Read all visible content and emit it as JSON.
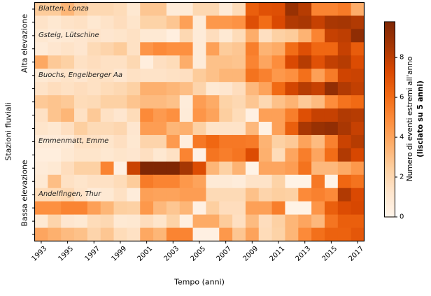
{
  "chart_data": {
    "type": "heatmap",
    "xlabel": "Tempo (anni)",
    "ylabel": "Stazioni fluviali",
    "y_group_labels": [
      {
        "label": "Alta elevazione"
      },
      {
        "label": "Bassa elevazione"
      }
    ],
    "x": [
      1993,
      1994,
      1995,
      1996,
      1997,
      1998,
      1999,
      2000,
      2001,
      2002,
      2003,
      2004,
      2005,
      2006,
      2007,
      2008,
      2009,
      2010,
      2011,
      2012,
      2013,
      2014,
      2015,
      2016,
      2017
    ],
    "x_tick_labels": [
      "1993",
      "1995",
      "1997",
      "1999",
      "2001",
      "2003",
      "2005",
      "2007",
      "2009",
      "2011",
      "2013",
      "2015",
      "2017"
    ],
    "x_tick_cols": [
      0,
      2,
      4,
      6,
      8,
      10,
      12,
      14,
      16,
      18,
      20,
      22,
      24
    ],
    "station_annotations": [
      {
        "label": "Blatten, Lonza",
        "row": 0
      },
      {
        "label": "Gsteig, Lütschine",
        "row": 2
      },
      {
        "label": "Buochs, Engelberger Aa",
        "row": 5
      },
      {
        "label": "Emmenmatt, Emme",
        "row": 10
      },
      {
        "label": "Andelfingen, Thur",
        "row": 14
      }
    ],
    "rows": 18,
    "cols": 25,
    "vmin": 0,
    "vmax": 9.8,
    "grid": false,
    "colormap": {
      "name": "Oranges",
      "anchors": [
        "#fff5eb",
        "#fee6ce",
        "#fdd0a2",
        "#fdae6b",
        "#fd8d3c",
        "#f16913",
        "#d94801",
        "#a63603",
        "#7f2704"
      ]
    },
    "colorbar": {
      "label_line1": "Numero di eventi estremi all'anno",
      "label_line2": "(lisciato su 5 anni)",
      "ticks": [
        "0",
        "2",
        "4",
        "6",
        "8"
      ],
      "tick_values": [
        0,
        2,
        4,
        6,
        8
      ],
      "position": "right"
    },
    "values": [
      [
        2.6,
        2.6,
        3.4,
        2.6,
        2.0,
        2.0,
        1.8,
        1.1,
        2.8,
        2.8,
        0.8,
        0.8,
        2.0,
        2.0,
        0.8,
        1.8,
        6.5,
        7.0,
        7.1,
        9.0,
        8.2,
        5.2,
        5.2,
        5.5,
        3.7
      ],
      [
        1.4,
        1.1,
        1.4,
        1.5,
        1.1,
        1.4,
        1.7,
        1.3,
        2.3,
        2.3,
        2.8,
        4.2,
        0.8,
        4.5,
        4.5,
        4.7,
        7.1,
        6.0,
        7.3,
        8.3,
        8.5,
        7.8,
        8.5,
        8.6,
        8.3
      ],
      [
        1.1,
        0.9,
        1.0,
        1.2,
        1.4,
        1.2,
        1.3,
        1.5,
        1.0,
        1.0,
        0.5,
        2.0,
        0.8,
        1.7,
        1.0,
        1.8,
        3.7,
        1.6,
        2.4,
        2.6,
        3.5,
        5.2,
        7.8,
        8.0,
        9.3
      ],
      [
        0.8,
        1.2,
        1.4,
        1.2,
        1.9,
        2.2,
        2.6,
        1.5,
        4.6,
        5.0,
        4.8,
        4.8,
        0.8,
        4.2,
        2.6,
        2.8,
        5.4,
        3.5,
        3.8,
        6.0,
        7.1,
        6.2,
        6.2,
        7.8,
        6.6
      ],
      [
        3.9,
        2.7,
        2.4,
        1.5,
        1.7,
        1.5,
        1.5,
        2.0,
        0.6,
        1.6,
        1.8,
        3.7,
        0.8,
        3.0,
        3.0,
        2.9,
        5.2,
        4.0,
        4.9,
        7.3,
        8.2,
        7.0,
        7.9,
        8.2,
        7.2
      ],
      [
        1.0,
        1.2,
        1.4,
        1.2,
        1.5,
        1.5,
        1.2,
        1.5,
        1.4,
        1.4,
        1.5,
        1.6,
        2.6,
        3.0,
        3.4,
        3.4,
        5.8,
        5.3,
        4.5,
        4.8,
        5.9,
        4.2,
        5.5,
        7.6,
        7.7
      ],
      [
        1.4,
        1.7,
        1.5,
        1.7,
        1.5,
        1.8,
        2.0,
        2.4,
        3.6,
        3.6,
        3.4,
        3.1,
        2.2,
        1.0,
        1.2,
        1.7,
        3.3,
        4.1,
        6.1,
        7.5,
        8.2,
        7.8,
        9.2,
        8.3,
        7.9
      ],
      [
        2.7,
        2.9,
        2.7,
        1.8,
        1.9,
        2.4,
        2.4,
        2.9,
        3.2,
        3.2,
        3.0,
        0.7,
        4.3,
        3.8,
        2.3,
        2.0,
        2.8,
        2.0,
        3.0,
        3.5,
        2.7,
        3.2,
        4.9,
        5.8,
        6.1
      ],
      [
        1.5,
        2.9,
        3.4,
        1.5,
        2.7,
        1.5,
        1.2,
        1.8,
        5.0,
        4.4,
        4.8,
        0.8,
        4.6,
        4.1,
        2.5,
        1.8,
        0.4,
        4.2,
        4.2,
        5.4,
        7.1,
        7.8,
        7.8,
        8.3,
        8.2
      ],
      [
        1.3,
        1.1,
        1.6,
        2.5,
        1.9,
        1.9,
        2.1,
        1.2,
        4.3,
        4.3,
        3.4,
        3.6,
        2.4,
        1.4,
        1.4,
        1.4,
        3.3,
        0.3,
        4.2,
        6.5,
        8.5,
        9.0,
        9.2,
        8.5,
        7.8
      ],
      [
        0.8,
        0.8,
        0.9,
        1.5,
        1.5,
        1.3,
        1.6,
        1.1,
        2.2,
        2.2,
        4.4,
        0.6,
        5.6,
        6.2,
        5.6,
        5.6,
        5.5,
        3.5,
        2.4,
        2.7,
        4.1,
        3.2,
        5.3,
        7.7,
        8.2
      ],
      [
        0.6,
        0.6,
        1.0,
        1.3,
        1.3,
        1.1,
        1.3,
        1.2,
        1.6,
        1.1,
        1.5,
        5.2,
        0.3,
        5.7,
        5.4,
        5.7,
        7.2,
        3.6,
        1.8,
        4.0,
        5.4,
        4.0,
        6.0,
        8.3,
        7.4
      ],
      [
        0.8,
        1.0,
        1.7,
        2.4,
        2.4,
        5.2,
        0.4,
        7.7,
        9.8,
        9.8,
        9.8,
        8.6,
        7.2,
        3.4,
        2.4,
        3.5,
        0.2,
        4.0,
        4.0,
        4.3,
        5.8,
        3.3,
        3.3,
        3.8,
        4.5
      ],
      [
        1.0,
        3.1,
        1.5,
        1.3,
        1.5,
        1.5,
        1.8,
        2.6,
        5.5,
        5.2,
        5.2,
        4.5,
        4.1,
        0.9,
        0.9,
        0.7,
        1.4,
        1.4,
        2.3,
        0.2,
        0.2,
        5.6,
        0.2,
        6.2,
        5.8
      ],
      [
        1.8,
        1.8,
        2.0,
        1.4,
        0.8,
        1.0,
        1.5,
        0.7,
        4.2,
        4.1,
        4.1,
        4.3,
        4.3,
        1.9,
        1.9,
        1.9,
        3.0,
        2.2,
        2.5,
        2.4,
        5.0,
        5.3,
        5.0,
        8.3,
        7.3
      ],
      [
        4.8,
        4.8,
        5.2,
        5.2,
        4.2,
        3.4,
        2.5,
        2.4,
        4.5,
        3.3,
        2.8,
        3.4,
        0.4,
        2.5,
        1.7,
        1.7,
        4.2,
        4.2,
        5.4,
        0.2,
        0.2,
        4.6,
        6.5,
        7.2,
        7.4
      ],
      [
        1.0,
        2.2,
        1.2,
        1.0,
        1.8,
        2.0,
        1.0,
        1.1,
        1.7,
        1.3,
        2.3,
        0.5,
        3.8,
        3.8,
        2.6,
        1.6,
        3.2,
        1.7,
        2.4,
        3.4,
        4.0,
        3.3,
        5.7,
        6.5,
        6.5
      ],
      [
        4.0,
        3.6,
        3.2,
        3.0,
        2.2,
        2.8,
        1.8,
        1.5,
        3.9,
        3.4,
        5.2,
        5.2,
        0.4,
        0.4,
        4.5,
        2.8,
        4.1,
        1.8,
        2.3,
        3.4,
        5.0,
        5.9,
        6.4,
        6.4,
        6.8
      ]
    ]
  }
}
